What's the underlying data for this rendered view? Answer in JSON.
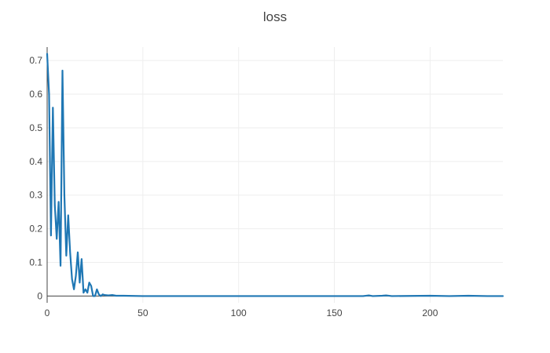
{
  "chart_data": {
    "type": "line",
    "title": "loss",
    "xlabel": "",
    "ylabel": "",
    "xlim": [
      0,
      238
    ],
    "ylim": [
      -0.02,
      0.74
    ],
    "x_ticks": [
      0,
      50,
      100,
      150,
      200
    ],
    "y_ticks": [
      0,
      0.1,
      0.2,
      0.3,
      0.4,
      0.5,
      0.6,
      0.7
    ],
    "grid": true,
    "legend": "none",
    "colors": {
      "line": "#1f77b4",
      "grid": "#eeeeee",
      "axis": "#444444",
      "tick_text": "#444444"
    },
    "series": [
      {
        "x": [
          0,
          1,
          2,
          3,
          4,
          5,
          6,
          7,
          8,
          9,
          10,
          11,
          12,
          13,
          14,
          15,
          16,
          17,
          18,
          19,
          20,
          21,
          22,
          23,
          24,
          25,
          26,
          27,
          28,
          29,
          30,
          32,
          34,
          36,
          40,
          50,
          80,
          120,
          150,
          165,
          168,
          170,
          175,
          177,
          180,
          200,
          210,
          220,
          230,
          238
        ],
        "y": [
          0.72,
          0.6,
          0.18,
          0.56,
          0.27,
          0.17,
          0.28,
          0.09,
          0.67,
          0.3,
          0.12,
          0.24,
          0.13,
          0.05,
          0.02,
          0.06,
          0.13,
          0.04,
          0.11,
          0.01,
          0.02,
          0.01,
          0.04,
          0.03,
          0.0,
          0.0,
          0.02,
          0.005,
          0.0,
          0.005,
          0.003,
          0.002,
          0.003,
          0.001,
          0.001,
          0.0,
          0.0,
          0.0,
          0.0,
          0.0,
          0.002,
          0.0,
          0.001,
          0.002,
          0.0,
          0.001,
          0.0,
          0.001,
          0.0,
          0.0
        ]
      }
    ]
  }
}
